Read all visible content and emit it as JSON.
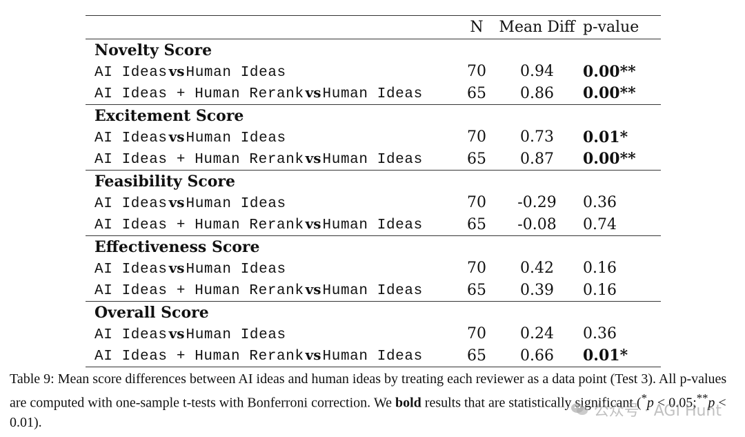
{
  "table": {
    "headers": {
      "comparison": "",
      "n": "N",
      "mean_diff": "Mean Diff",
      "p_value": "p-value"
    },
    "vs_label": "vs",
    "sections": [
      {
        "title": "Novelty Score",
        "rows": [
          {
            "left": "AI Ideas",
            "right": "Human Ideas",
            "n": "70",
            "mean_diff": "0.94",
            "p_value": "0.00**",
            "significant": true
          },
          {
            "left": "AI Ideas + Human Rerank",
            "right": "Human Ideas",
            "n": "65",
            "mean_diff": "0.86",
            "p_value": "0.00**",
            "significant": true
          }
        ]
      },
      {
        "title": "Excitement Score",
        "rows": [
          {
            "left": "AI Ideas",
            "right": "Human Ideas",
            "n": "70",
            "mean_diff": "0.73",
            "p_value": "0.01*",
            "significant": true
          },
          {
            "left": "AI Ideas + Human Rerank",
            "right": "Human Ideas",
            "n": "65",
            "mean_diff": "0.87",
            "p_value": "0.00**",
            "significant": true
          }
        ]
      },
      {
        "title": "Feasibility Score",
        "rows": [
          {
            "left": "AI Ideas",
            "right": "Human Ideas",
            "n": "70",
            "mean_diff": "-0.29",
            "p_value": "0.36",
            "significant": false
          },
          {
            "left": "AI Ideas + Human Rerank",
            "right": "Human Ideas",
            "n": "65",
            "mean_diff": "-0.08",
            "p_value": "0.74",
            "significant": false
          }
        ]
      },
      {
        "title": "Effectiveness Score",
        "rows": [
          {
            "left": "AI Ideas",
            "right": "Human Ideas",
            "n": "70",
            "mean_diff": "0.42",
            "p_value": "0.16",
            "significant": false
          },
          {
            "left": "AI Ideas + Human Rerank",
            "right": "Human Ideas",
            "n": "65",
            "mean_diff": "0.39",
            "p_value": "0.16",
            "significant": false
          }
        ]
      },
      {
        "title": "Overall Score",
        "rows": [
          {
            "left": "AI Ideas",
            "right": "Human Ideas",
            "n": "70",
            "mean_diff": "0.24",
            "p_value": "0.36",
            "significant": false
          },
          {
            "left": "AI Ideas + Human Rerank",
            "right": "Human Ideas",
            "n": "65",
            "mean_diff": "0.66",
            "p_value": "0.01*",
            "significant": true
          }
        ]
      }
    ]
  },
  "caption": {
    "label": "Table 9:",
    "text_1": " Mean score differences between AI ideas and human ideas by treating each reviewer as a data point (Test 3). All p-values are computed with one-sample t-tests with Bonferroni correction. We ",
    "bold_word": "bold",
    "text_2": " results that are statistically significant (",
    "sig1_star": "*",
    "sig1_p": "p",
    "sig1_rest": " < 0.05;",
    "sig2_star": "**",
    "sig2_p": "p",
    "sig2_rest": " < 0.01)."
  },
  "watermark": {
    "text": "公众号 · AGI Hunt",
    "icon": "wechat-icon"
  }
}
